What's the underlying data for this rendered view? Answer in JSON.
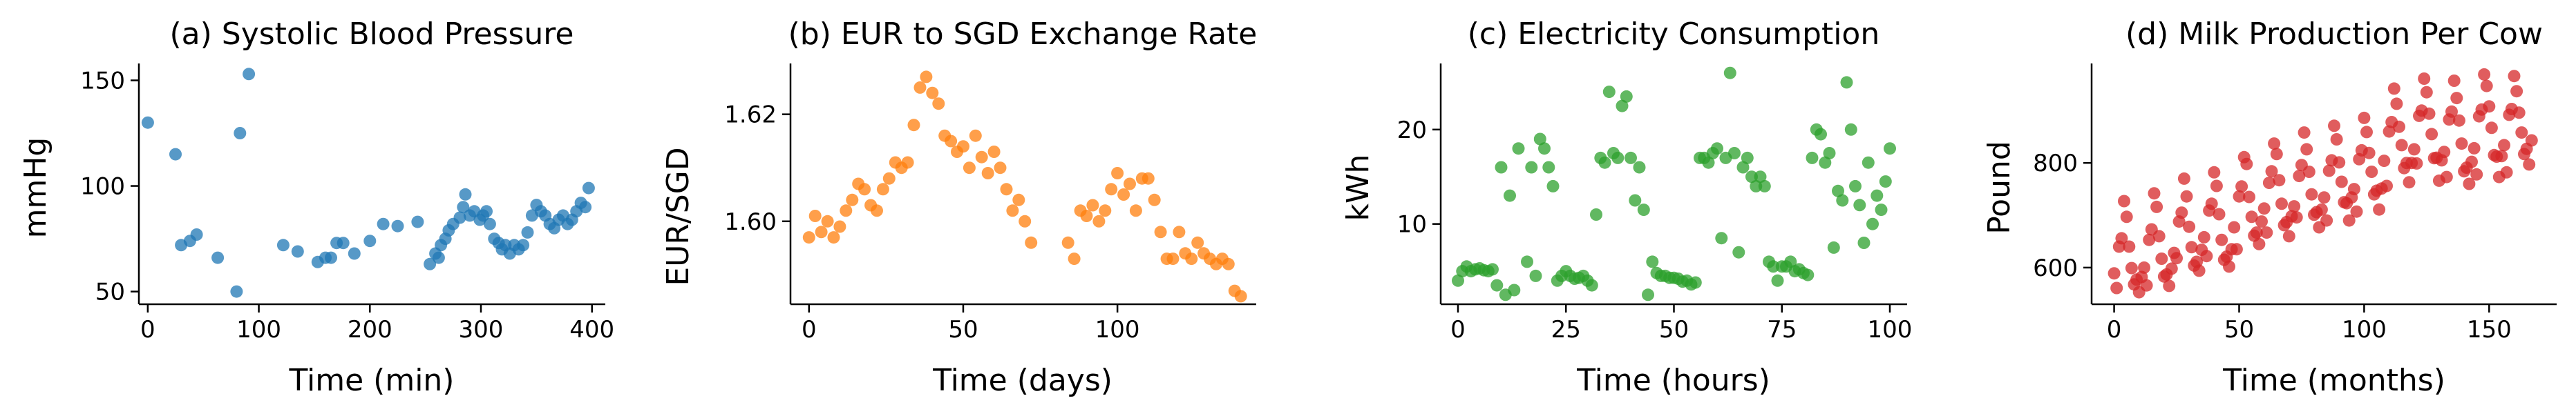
{
  "figure": {
    "point_opacity": 0.75
  },
  "chart_data": [
    {
      "type": "scatter",
      "title": "(a) Systolic Blood Pressure",
      "xlabel": "Time (min)",
      "ylabel": "mmHg",
      "color": "#1f77b4",
      "xlim": [
        -8,
        412
      ],
      "ylim": [
        44,
        158
      ],
      "xticks": [
        0,
        100,
        200,
        300,
        400
      ],
      "yticks": [
        50,
        100,
        150
      ],
      "grid": false,
      "legend": "none",
      "x": [
        0,
        25,
        30,
        38,
        44,
        63,
        80,
        83,
        91,
        122,
        135,
        153,
        160,
        165,
        170,
        176,
        186,
        200,
        212,
        225,
        243,
        254,
        259,
        262,
        264,
        268,
        271,
        275,
        281,
        284,
        286,
        290,
        294,
        299,
        302,
        305,
        308,
        312,
        316,
        319,
        322,
        326,
        330,
        334,
        338,
        342,
        346,
        350,
        354,
        358,
        362,
        366,
        370,
        374,
        378,
        382,
        386,
        390,
        394,
        397
      ],
      "y": [
        130,
        115,
        72,
        74,
        77,
        66,
        50,
        125,
        153,
        72,
        69,
        64,
        66,
        66,
        73,
        73,
        68,
        74,
        82,
        81,
        83,
        63,
        68,
        66,
        72,
        75,
        79,
        82,
        85,
        90,
        96,
        86,
        88,
        84,
        86,
        88,
        82,
        75,
        73,
        70,
        72,
        68,
        72,
        70,
        72,
        78,
        86,
        91,
        88,
        86,
        82,
        80,
        84,
        86,
        82,
        84,
        88,
        92,
        90,
        99
      ]
    },
    {
      "type": "scatter",
      "title": "(b) EUR to SGD Exchange Rate",
      "xlabel": "Time (days)",
      "ylabel": "EUR/SGD",
      "color": "#ff7f0e",
      "xlim": [
        -6,
        145
      ],
      "ylim": [
        1.5845,
        1.6295
      ],
      "xticks": [
        0,
        50,
        100
      ],
      "yticks": [
        1.6,
        1.62
      ],
      "grid": false,
      "legend": "none",
      "x": [
        0,
        2,
        4,
        6,
        8,
        10,
        12,
        14,
        16,
        18,
        20,
        22,
        24,
        26,
        28,
        30,
        32,
        34,
        36,
        38,
        40,
        42,
        44,
        46,
        48,
        50,
        52,
        54,
        56,
        58,
        60,
        62,
        64,
        66,
        68,
        70,
        72,
        84,
        86,
        88,
        90,
        92,
        94,
        96,
        98,
        100,
        102,
        104,
        106,
        108,
        110,
        112,
        114,
        116,
        118,
        120,
        122,
        124,
        126,
        128,
        130,
        132,
        134,
        136,
        138,
        140
      ],
      "y": [
        1.597,
        1.601,
        1.598,
        1.6,
        1.597,
        1.599,
        1.602,
        1.604,
        1.607,
        1.606,
        1.603,
        1.602,
        1.606,
        1.608,
        1.611,
        1.61,
        1.611,
        1.618,
        1.625,
        1.627,
        1.624,
        1.622,
        1.616,
        1.615,
        1.613,
        1.614,
        1.61,
        1.616,
        1.612,
        1.609,
        1.613,
        1.61,
        1.606,
        1.602,
        1.604,
        1.6,
        1.596,
        1.596,
        1.593,
        1.602,
        1.601,
        1.603,
        1.6,
        1.602,
        1.606,
        1.609,
        1.605,
        1.607,
        1.602,
        1.608,
        1.608,
        1.604,
        1.598,
        1.593,
        1.593,
        1.598,
        1.594,
        1.593,
        1.596,
        1.594,
        1.593,
        1.592,
        1.593,
        1.592,
        1.587,
        1.586
      ]
    },
    {
      "type": "scatter",
      "title": "(c) Electricity Consumption",
      "xlabel": "Time (hours)",
      "ylabel": "kWh",
      "color": "#2ca02c",
      "xlim": [
        -4,
        104
      ],
      "ylim": [
        1.5,
        27
      ],
      "xticks": [
        0,
        25,
        50,
        75,
        100
      ],
      "yticks": [
        10,
        20
      ],
      "grid": false,
      "legend": "none",
      "x": [
        0,
        1,
        2,
        3,
        4,
        5,
        6,
        7,
        8,
        9,
        10,
        11,
        12,
        13,
        14,
        16,
        17,
        18,
        19,
        20,
        21,
        22,
        23,
        24,
        25,
        26,
        27,
        28,
        29,
        30,
        31,
        32,
        33,
        34,
        35,
        36,
        37,
        38,
        39,
        40,
        41,
        42,
        43,
        44,
        45,
        46,
        47,
        48,
        49,
        50,
        51,
        52,
        53,
        54,
        55,
        56,
        57,
        58,
        59,
        60,
        61,
        62,
        63,
        64,
        65,
        66,
        67,
        68,
        69,
        70,
        71,
        72,
        73,
        74,
        75,
        76,
        77,
        78,
        79,
        80,
        81,
        82,
        83,
        84,
        85,
        86,
        87,
        88,
        89,
        90,
        91,
        92,
        93,
        94,
        95,
        96,
        97,
        98,
        99,
        100
      ],
      "y": [
        4,
        5,
        5.5,
        5,
        5.2,
        5.3,
        5.1,
        5.0,
        5.2,
        3.5,
        16,
        2.5,
        13,
        3,
        18,
        6,
        16,
        4.5,
        19,
        18,
        16,
        14,
        4,
        4.5,
        5,
        4.5,
        4.2,
        4.3,
        4.5,
        4,
        3.5,
        11,
        17,
        16.5,
        24,
        17.5,
        17,
        22.5,
        23.5,
        17,
        12.5,
        16,
        11.5,
        2.5,
        6,
        4.8,
        4.5,
        4.5,
        4.3,
        4.3,
        4.2,
        3.9,
        4.0,
        3.6,
        3.8,
        17,
        17,
        16.5,
        17.5,
        18,
        8.5,
        17,
        26,
        17.5,
        7,
        16,
        17,
        15,
        14,
        15,
        14,
        6,
        5.5,
        4,
        5.5,
        5.5,
        6,
        5,
        5.2,
        4.8,
        4.6,
        17,
        20,
        19.5,
        16.5,
        17.5,
        7.5,
        13.5,
        12.5,
        25,
        20,
        14,
        12,
        8,
        16.5,
        10,
        13,
        11.5,
        14.5,
        18
      ]
    },
    {
      "type": "scatter",
      "title": "(d) Milk Production Per Cow",
      "xlabel": "Time (months)",
      "ylabel": "Pound",
      "color": "#d62728",
      "xlim": [
        -9,
        177
      ],
      "ylim": [
        530,
        990
      ],
      "xticks": [
        0,
        50,
        100,
        150
      ],
      "yticks": [
        600,
        800
      ],
      "grid": false,
      "legend": "none",
      "x": [
        0,
        1,
        2,
        3,
        4,
        5,
        6,
        7,
        8,
        9,
        10,
        11,
        12,
        13,
        14,
        15,
        16,
        17,
        18,
        19,
        20,
        21,
        22,
        23,
        24,
        25,
        26,
        27,
        28,
        29,
        30,
        31,
        32,
        33,
        34,
        35,
        36,
        37,
        38,
        39,
        40,
        41,
        42,
        43,
        44,
        45,
        46,
        47,
        48,
        49,
        50,
        51,
        52,
        53,
        54,
        55,
        56,
        57,
        58,
        59,
        60,
        61,
        62,
        63,
        64,
        65,
        66,
        67,
        68,
        69,
        70,
        71,
        72,
        73,
        74,
        75,
        76,
        77,
        78,
        79,
        80,
        81,
        82,
        83,
        84,
        85,
        86,
        87,
        88,
        89,
        90,
        91,
        92,
        93,
        94,
        95,
        96,
        97,
        98,
        99,
        100,
        101,
        102,
        103,
        104,
        105,
        106,
        107,
        108,
        109,
        110,
        111,
        112,
        113,
        114,
        115,
        116,
        117,
        118,
        119,
        120,
        121,
        122,
        123,
        124,
        125,
        126,
        127,
        128,
        129,
        130,
        131,
        132,
        133,
        134,
        135,
        136,
        137,
        138,
        139,
        140,
        141,
        142,
        143,
        144,
        145,
        146,
        147,
        148,
        149,
        150,
        151,
        152,
        153,
        154,
        155,
        156,
        157,
        158,
        159,
        160,
        161,
        162,
        163,
        164,
        165,
        166,
        167
      ],
      "y": [
        589,
        561,
        640,
        656,
        727,
        697,
        640,
        599,
        568,
        577,
        553,
        582,
        600,
        566,
        653,
        673,
        742,
        716,
        660,
        617,
        583,
        587,
        565,
        598,
        628,
        618,
        688,
        705,
        770,
        736,
        678,
        639,
        604,
        611,
        594,
        634,
        658,
        622,
        709,
        722,
        782,
        756,
        702,
        653,
        615,
        621,
        602,
        635,
        677,
        635,
        736,
        755,
        811,
        798,
        735,
        697,
        661,
        667,
        645,
        688,
        713,
        667,
        762,
        784,
        837,
        817,
        767,
        722,
        681,
        687,
        660,
        698,
        717,
        696,
        775,
        796,
        858,
        826,
        783,
        740,
        701,
        706,
        677,
        711,
        734,
        690,
        785,
        805,
        871,
        845,
        801,
        764,
        725,
        723,
        690,
        734,
        750,
        707,
        807,
        824,
        886,
        859,
        819,
        783,
        740,
        747,
        711,
        751,
        804,
        756,
        860,
        878,
        942,
        913,
        869,
        834,
        790,
        800,
        763,
        800,
        826,
        799,
        890,
        900,
        961,
        935,
        894,
        855,
        809,
        810,
        766,
        805,
        821,
        773,
        883,
        898,
        957,
        924,
        881,
        837,
        784,
        791,
        760,
        802,
        828,
        778,
        889,
        902,
        969,
        947,
        908,
        867,
        815,
        812,
        773,
        813,
        834,
        782,
        892,
        903,
        966,
        937,
        896,
        858,
        817,
        827,
        797,
        843
      ]
    }
  ]
}
